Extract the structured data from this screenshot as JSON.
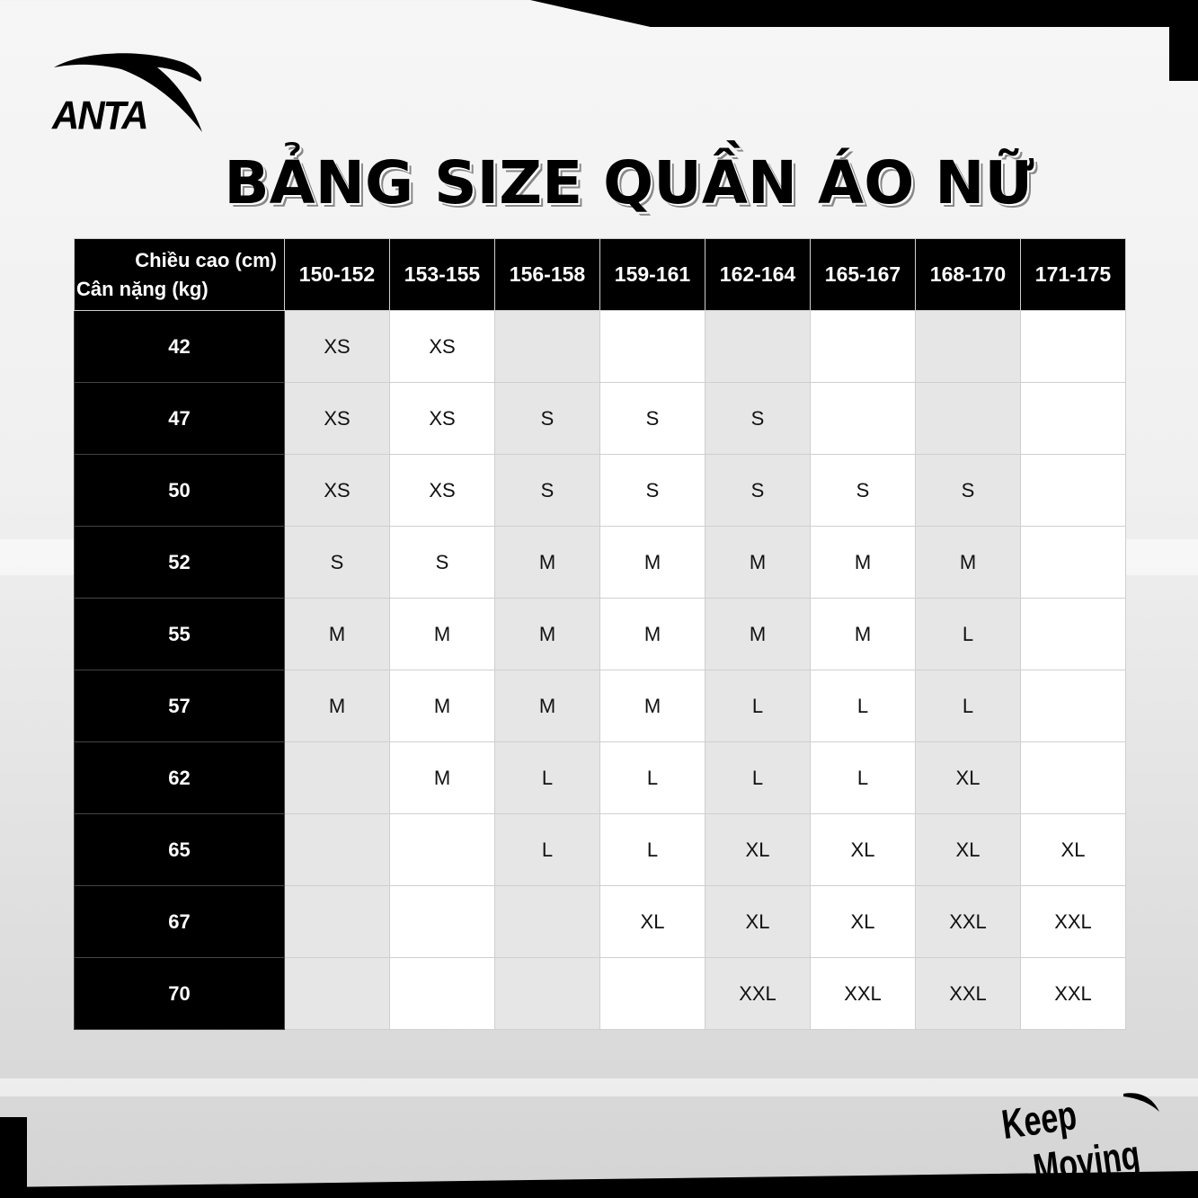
{
  "brand": {
    "logo_text": "ANTA",
    "slogan": "Keep Moving"
  },
  "title": "BẢNG SIZE QUẦN ÁO NỮ",
  "table": {
    "corner_top": "Chiều cao (cm)",
    "corner_bottom": "Cân nặng (kg)",
    "heights": [
      "150-152",
      "153-155",
      "156-158",
      "159-161",
      "162-164",
      "165-167",
      "168-170",
      "171-175"
    ],
    "rows": [
      {
        "weight": "42",
        "sizes": [
          "XS",
          "XS",
          "",
          "",
          "",
          "",
          "",
          ""
        ]
      },
      {
        "weight": "47",
        "sizes": [
          "XS",
          "XS",
          "S",
          "S",
          "S",
          "",
          "",
          ""
        ]
      },
      {
        "weight": "50",
        "sizes": [
          "XS",
          "XS",
          "S",
          "S",
          "S",
          "S",
          "S",
          ""
        ]
      },
      {
        "weight": "52",
        "sizes": [
          "S",
          "S",
          "M",
          "M",
          "M",
          "M",
          "M",
          ""
        ]
      },
      {
        "weight": "55",
        "sizes": [
          "M",
          "M",
          "M",
          "M",
          "M",
          "M",
          "L",
          ""
        ]
      },
      {
        "weight": "57",
        "sizes": [
          "M",
          "M",
          "M",
          "M",
          "L",
          "L",
          "L",
          ""
        ]
      },
      {
        "weight": "62",
        "sizes": [
          "",
          "M",
          "L",
          "L",
          "L",
          "L",
          "XL",
          ""
        ]
      },
      {
        "weight": "65",
        "sizes": [
          "",
          "",
          "L",
          "L",
          "XL",
          "XL",
          "XL",
          "XL"
        ]
      },
      {
        "weight": "67",
        "sizes": [
          "",
          "",
          "",
          "XL",
          "XL",
          "XL",
          "XXL",
          "XXL"
        ]
      },
      {
        "weight": "70",
        "sizes": [
          "",
          "",
          "",
          "",
          "XXL",
          "XXL",
          "XXL",
          "XXL"
        ]
      }
    ]
  }
}
